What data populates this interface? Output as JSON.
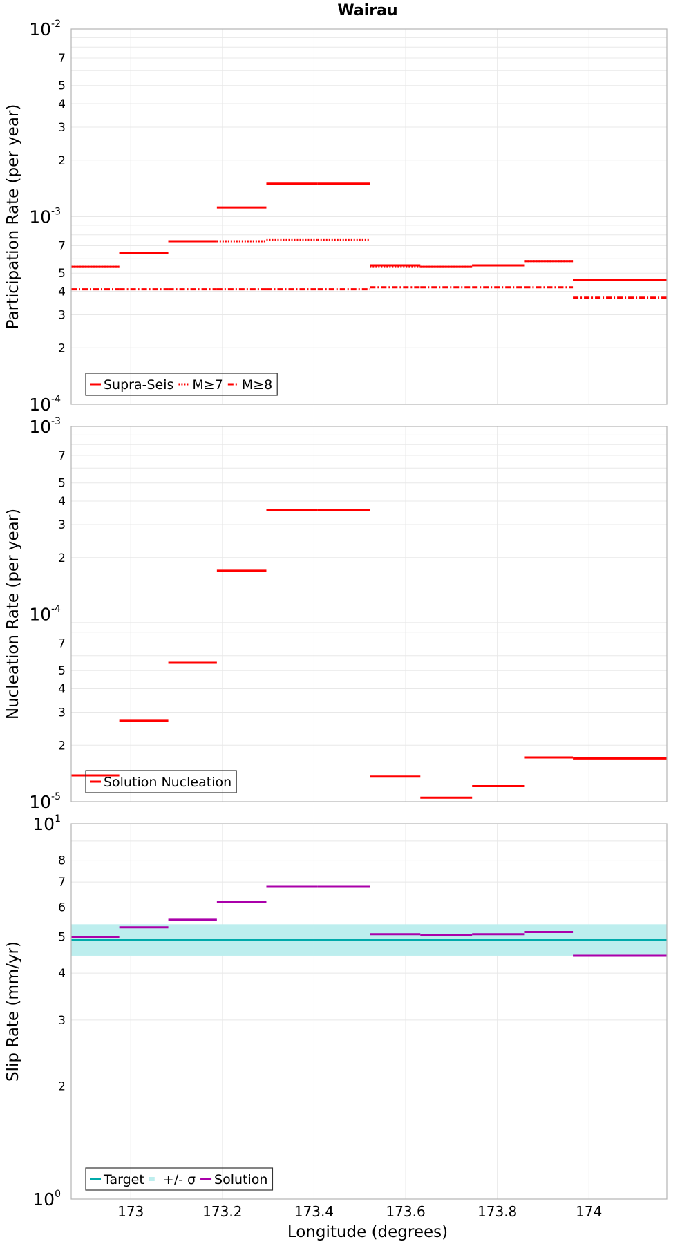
{
  "chart_data": {
    "type": "line",
    "title": "Wairau",
    "xlabel": "Longitude (degrees)",
    "xlim": [
      172.87,
      174.17
    ],
    "x_ticks": [
      173,
      173.2,
      173.4,
      173.6,
      173.8,
      174
    ],
    "x_tick_labels": [
      "173",
      "173.2",
      "173.4",
      "173.6",
      "173.8",
      "174"
    ],
    "segment_edges": [
      172.87,
      172.975,
      173.082,
      173.188,
      173.296,
      173.408,
      173.522,
      173.632,
      173.745,
      173.86,
      173.965,
      174.17
    ],
    "panels": [
      {
        "ylabel": "Participation Rate (per year)",
        "yscale": "log",
        "ylim": [
          0.0001,
          0.01
        ],
        "major_ticks": [
          {
            "base": "10",
            "exp": "-4",
            "value": 0.0001
          },
          {
            "base": "10",
            "exp": "-3",
            "value": 0.001
          },
          {
            "base": "10",
            "exp": "-2",
            "value": 0.01
          }
        ],
        "minor_tick_labels": [
          "2",
          "3",
          "4",
          "5",
          "7"
        ],
        "series": [
          {
            "name": "Supra-Seis",
            "style": "solid",
            "color": "#ff0000",
            "values": [
              0.00054,
              0.00064,
              0.00074,
              0.00112,
              0.0015,
              0.0015,
              0.00055,
              0.00054,
              0.00055,
              0.00058,
              0.00046
            ]
          },
          {
            "name": "M≥7",
            "style": "dotted",
            "color": "#ff0000",
            "values": [
              0.00054,
              0.00064,
              0.00074,
              0.00074,
              0.00075,
              0.00075,
              0.00054,
              0.00054,
              0.00055,
              0.00058,
              0.00046
            ]
          },
          {
            "name": "M≥8",
            "style": "dashdot",
            "color": "#ff0000",
            "values": [
              0.00041,
              0.00041,
              0.00041,
              0.00041,
              0.00041,
              0.00041,
              0.00042,
              0.00042,
              0.00042,
              0.00042,
              0.00037
            ]
          }
        ]
      },
      {
        "ylabel": "Nucleation Rate (per year)",
        "yscale": "log",
        "ylim": [
          1e-05,
          0.001
        ],
        "major_ticks": [
          {
            "base": "10",
            "exp": "-5",
            "value": 1e-05
          },
          {
            "base": "10",
            "exp": "-4",
            "value": 0.0001
          },
          {
            "base": "10",
            "exp": "-3",
            "value": 0.001
          }
        ],
        "minor_tick_labels": [
          "2",
          "3",
          "4",
          "5",
          "7"
        ],
        "series": [
          {
            "name": "Solution Nucleation",
            "style": "solid",
            "color": "#ff0000",
            "values": [
              1.38e-05,
              2.7e-05,
              5.5e-05,
              0.00017,
              0.00036,
              0.00036,
              1.36e-05,
              1.05e-05,
              1.21e-05,
              1.72e-05,
              1.7e-05
            ]
          }
        ]
      },
      {
        "ylabel": "Slip Rate (mm/yr)",
        "yscale": "log",
        "ylim": [
          1,
          10
        ],
        "major_ticks": [
          {
            "base": "10",
            "exp": "0",
            "value": 1
          },
          {
            "base": "10",
            "exp": "1",
            "value": 10
          }
        ],
        "minor_tick_labels": [
          "2",
          "3",
          "4",
          "5",
          "6",
          "7",
          "8"
        ],
        "target": {
          "name": "Target",
          "value": 4.9,
          "color": "#00aaaa"
        },
        "band": {
          "name": "+/- σ",
          "low": 4.45,
          "high": 5.4,
          "color": "#bdeeee"
        },
        "series": [
          {
            "name": "Solution",
            "style": "solid",
            "color": "#aa00aa",
            "values": [
              5.0,
              5.3,
              5.55,
              6.2,
              6.8,
              6.8,
              5.08,
              5.05,
              5.08,
              5.15,
              4.45
            ]
          }
        ]
      }
    ]
  }
}
